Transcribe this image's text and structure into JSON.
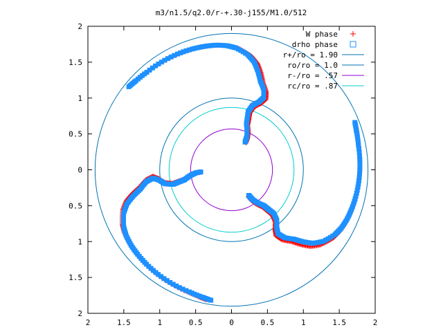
{
  "chart_data": {
    "type": "scatter",
    "title": "m3/n1.5/q2.0/r-+.30-j155/M1.0/512",
    "xlabel": "",
    "ylabel": "",
    "xlim": [
      -2,
      2
    ],
    "ylim": [
      -2,
      2
    ],
    "x_tick_values": [
      -2,
      -1.5,
      -1,
      -0.5,
      0,
      0.5,
      1,
      1.5,
      2
    ],
    "x_tick_labels": [
      "2",
      "1.5",
      "1",
      "0.5",
      "0",
      "0.5",
      "1",
      "1.5",
      "2"
    ],
    "y_tick_values": [
      2,
      1.5,
      1,
      0.5,
      0,
      -0.5,
      -1,
      -1.5,
      -2
    ],
    "y_tick_labels": [
      "2",
      "1.5",
      "1",
      "0.5",
      "0",
      "0.5",
      "1",
      "1.5",
      "2"
    ],
    "grid": false,
    "legend_position": "top-right",
    "circles": [
      {
        "name": "r+/ro = 1.90",
        "radius": 1.9,
        "color": "#0072b2"
      },
      {
        "name": "ro/ro = 1.0",
        "radius": 1.0,
        "color": "#0072b2"
      },
      {
        "name": "r-/ro = .57",
        "radius": 0.57,
        "color": "#9400d3"
      },
      {
        "name": "rc/ro = .87",
        "radius": 0.87,
        "color": "#00cccc"
      }
    ],
    "series": [
      {
        "name": "W phase",
        "marker": "plus",
        "color": "#ff0000"
      },
      {
        "name": "drho phase",
        "marker": "square",
        "color": "#1e90ff"
      }
    ],
    "arm": {
      "description": "one spiral arm in polar form; three-fold symmetric copies at +120 and +240 degrees",
      "points": [
        {
          "r": 0.43,
          "theta_deg": 62
        },
        {
          "r": 0.5,
          "theta_deg": 63
        },
        {
          "r": 0.58,
          "theta_deg": 66
        },
        {
          "r": 0.67,
          "theta_deg": 70
        },
        {
          "r": 0.75,
          "theta_deg": 71
        },
        {
          "r": 0.84,
          "theta_deg": 72
        },
        {
          "r": 0.94,
          "theta_deg": 70
        },
        {
          "r": 1.02,
          "theta_deg": 66
        },
        {
          "r": 1.1,
          "theta_deg": 64
        },
        {
          "r": 1.2,
          "theta_deg": 66
        },
        {
          "r": 1.3,
          "theta_deg": 70
        },
        {
          "r": 1.42,
          "theta_deg": 73
        },
        {
          "r": 1.53,
          "theta_deg": 76
        },
        {
          "r": 1.62,
          "theta_deg": 80
        },
        {
          "r": 1.7,
          "theta_deg": 86
        },
        {
          "r": 1.73,
          "theta_deg": 90
        },
        {
          "r": 1.75,
          "theta_deg": 95
        },
        {
          "r": 1.76,
          "theta_deg": 100
        },
        {
          "r": 1.77,
          "theta_deg": 106
        },
        {
          "r": 1.78,
          "theta_deg": 113
        },
        {
          "r": 1.79,
          "theta_deg": 121
        },
        {
          "r": 1.8,
          "theta_deg": 129
        },
        {
          "r": 1.82,
          "theta_deg": 135
        },
        {
          "r": 1.84,
          "theta_deg": 139
        }
      ]
    }
  }
}
